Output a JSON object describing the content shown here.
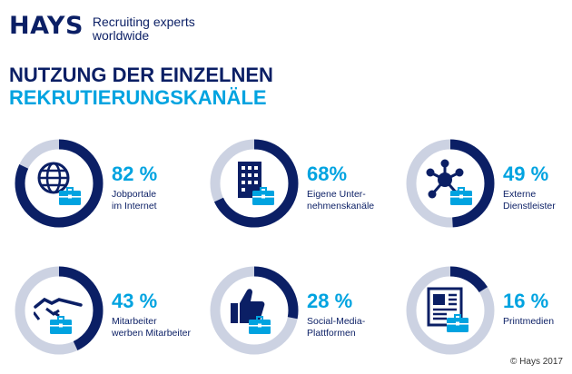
{
  "brand": {
    "logo_text": "HAYS",
    "tagline_line1": "Recruiting experts",
    "tagline_line2": "worldwide"
  },
  "title_line1": "NUTZUNG DER EINZELNEN",
  "title_line2": "REKRUTIERUNGSKANÄLE",
  "colors": {
    "navy": "#0b1f65",
    "accent": "#00a3e0",
    "track": "#ccd2e2"
  },
  "chart_data": {
    "type": "pie",
    "items": [
      {
        "value": 82,
        "value_label": "82 %",
        "label_line1": "Jobportale",
        "label_line2": "im Internet",
        "icon": "globe-briefcase-icon"
      },
      {
        "value": 68,
        "value_label": "68%",
        "label_line1": "Eigene Unter-",
        "label_line2": "nehmenskanäle",
        "icon": "office-building-briefcase-icon"
      },
      {
        "value": 49,
        "value_label": "49 %",
        "label_line1": "Externe",
        "label_line2": "Dienstleister",
        "icon": "network-hub-briefcase-icon"
      },
      {
        "value": 43,
        "value_label": "43 %",
        "label_line1": "Mitarbeiter",
        "label_line2": "werben Mitarbeiter",
        "icon": "handshake-briefcase-icon"
      },
      {
        "value": 28,
        "value_label": "28 %",
        "label_line1": "Social-Media-",
        "label_line2": "Plattformen",
        "icon": "thumbs-up-briefcase-icon"
      },
      {
        "value": 16,
        "value_label": "16 %",
        "label_line1": "Printmedien",
        "label_line2": "",
        "icon": "newspaper-briefcase-icon"
      }
    ]
  },
  "copyright": "© Hays 2017"
}
